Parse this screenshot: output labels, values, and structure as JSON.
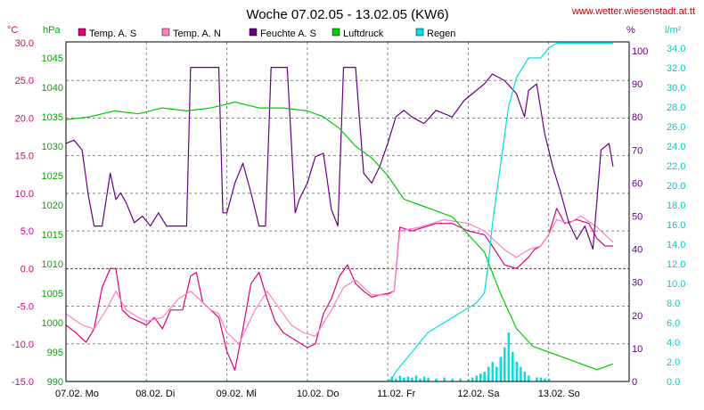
{
  "chart_data": {
    "type": "line",
    "title": "Woche 07.02.05 - 13.02.05 (KW6)",
    "source_label": "www.wetter.wiesenstadt.at.tt",
    "units": {
      "temp": "°C",
      "pressure": "hPa",
      "humidity": "%",
      "rain": "l/m²"
    },
    "x_ticks": [
      "07.02. Mo",
      "08.02. Di",
      "09.02. Mi",
      "10.02. Do",
      "11.02. Fr",
      "12.02. Sa",
      "13.02. So"
    ],
    "axes": {
      "temp": {
        "min": -15,
        "max": 30,
        "ticks": [
          "30.0",
          "25.0",
          "20.0",
          "15.0",
          "10.0",
          "5.0",
          "0.0",
          "-5.0",
          "-10.0",
          "-15.0"
        ]
      },
      "pressure": {
        "min": 990,
        "max": 1046,
        "ticks": [
          "1045",
          "1040",
          "1035",
          "1030",
          "1025",
          "1020",
          "1015",
          "1010",
          "1005",
          "1000",
          "995",
          "990"
        ]
      },
      "humidity": {
        "min": 0,
        "max": 100,
        "ticks": [
          "100",
          "90",
          "80",
          "70",
          "60",
          "50",
          "40",
          "30",
          "20",
          "10",
          "0"
        ]
      },
      "rain": {
        "min": 0,
        "max": 35,
        "ticks": [
          "34.0",
          "32.0",
          "30.0",
          "28.0",
          "26.0",
          "24.0",
          "22.0",
          "20.0",
          "18.0",
          "16.0",
          "14.0",
          "12.0",
          "10.0",
          "8.0",
          "6.0",
          "4.0",
          "2.0",
          "0.0"
        ]
      }
    },
    "grid": true,
    "legend_placement": "top",
    "x_unit": "days since 07.02. 00:00",
    "series": [
      {
        "name": "Temp. A. S",
        "axis": "temp",
        "color": "#e0007a",
        "kind": "line",
        "x": [
          0,
          0.12,
          0.25,
          0.35,
          0.45,
          0.55,
          0.62,
          0.7,
          0.8,
          0.9,
          1.0,
          1.1,
          1.2,
          1.3,
          1.45,
          1.55,
          1.62,
          1.7,
          1.8,
          1.9,
          2.0,
          2.1,
          2.2,
          2.3,
          2.4,
          2.5,
          2.6,
          2.7,
          2.85,
          3.0,
          3.1,
          3.2,
          3.3,
          3.4,
          3.5,
          3.6,
          3.7,
          3.8,
          3.9,
          4.0,
          4.08,
          4.15,
          4.3,
          4.45,
          4.6,
          4.8,
          5.0,
          5.2,
          5.3,
          5.45,
          5.6,
          5.75,
          5.82,
          5.9,
          6.0,
          6.1,
          6.2,
          6.35,
          6.5,
          6.6,
          6.7,
          6.8
        ],
        "y": [
          -7.5,
          -8.5,
          -9.8,
          -8.0,
          -2.5,
          0.0,
          0.0,
          -5.5,
          -6.5,
          -7.0,
          -7.5,
          -6.5,
          -8.0,
          -5.5,
          -5.5,
          -1.0,
          -0.5,
          -4.5,
          -5.5,
          -6.5,
          -11.0,
          -13.5,
          -8.0,
          -2.0,
          -0.5,
          -4.0,
          -7.0,
          -8.5,
          -9.5,
          -10.5,
          -10.0,
          -6.0,
          -4.0,
          -1.0,
          0.5,
          -2.0,
          -3.0,
          -3.8,
          -3.5,
          -3.3,
          -3.0,
          5.5,
          5.0,
          5.5,
          6.0,
          6.0,
          5.0,
          4.5,
          3.0,
          0.5,
          0.0,
          1.5,
          2.5,
          3.0,
          4.5,
          8.0,
          6.0,
          6.5,
          6.0,
          4.0,
          3.0,
          3.0
        ]
      },
      {
        "name": "Temp. A. N",
        "axis": "temp",
        "color": "#ff80c0",
        "kind": "line",
        "x": [
          0,
          0.2,
          0.35,
          0.5,
          0.62,
          0.75,
          0.9,
          1.0,
          1.2,
          1.4,
          1.55,
          1.65,
          1.8,
          1.9,
          2.0,
          2.15,
          2.35,
          2.5,
          2.6,
          2.8,
          2.95,
          3.1,
          3.3,
          3.45,
          3.6,
          3.8,
          4.0,
          4.08,
          4.15,
          4.4,
          4.7,
          5.0,
          5.2,
          5.45,
          5.6,
          5.75,
          5.9,
          6.0,
          6.1,
          6.25,
          6.4,
          6.6,
          6.8
        ],
        "y": [
          -6.0,
          -7.5,
          -8.0,
          -5.5,
          -3.0,
          -5.5,
          -6.5,
          -7.0,
          -6.5,
          -4.0,
          -3.0,
          -4.0,
          -5.5,
          -6.0,
          -8.5,
          -10.0,
          -5.5,
          -3.0,
          -4.5,
          -7.5,
          -8.5,
          -9.0,
          -5.5,
          -2.5,
          -1.5,
          -3.5,
          -3.5,
          -3.0,
          5.0,
          5.5,
          6.5,
          6.0,
          5.0,
          2.5,
          1.5,
          2.5,
          3.0,
          4.5,
          6.5,
          6.0,
          7.0,
          5.5,
          3.5
        ]
      },
      {
        "name": "Feuchte A. S",
        "axis": "humidity",
        "color": "#660080",
        "kind": "line",
        "x": [
          0,
          0.1,
          0.2,
          0.28,
          0.35,
          0.45,
          0.55,
          0.62,
          0.68,
          0.75,
          0.85,
          0.95,
          1.05,
          1.15,
          1.25,
          1.35,
          1.5,
          1.55,
          1.65,
          1.9,
          1.95,
          2.0,
          2.1,
          2.2,
          2.3,
          2.4,
          2.48,
          2.55,
          2.65,
          2.75,
          2.85,
          2.9,
          3.0,
          3.1,
          3.2,
          3.3,
          3.38,
          3.45,
          3.55,
          3.6,
          3.7,
          3.8,
          3.9,
          4.0,
          4.1,
          4.2,
          4.3,
          4.45,
          4.6,
          4.8,
          4.95,
          5.1,
          5.2,
          5.3,
          5.45,
          5.6,
          5.7,
          5.75,
          5.85,
          5.95,
          6.05,
          6.15,
          6.25,
          6.35,
          6.45,
          6.55,
          6.65,
          6.75,
          6.8
        ],
        "y": [
          72,
          73,
          70,
          56,
          47,
          47,
          63,
          55,
          57,
          54,
          48,
          50,
          47,
          51,
          47,
          47,
          47,
          95,
          95,
          95,
          51,
          51,
          60,
          66,
          57,
          47,
          47,
          95,
          95,
          95,
          51,
          55,
          60,
          68,
          69,
          52,
          47,
          95,
          95,
          95,
          63,
          60,
          65,
          72,
          80,
          82,
          80,
          78,
          82,
          80,
          85,
          88,
          90,
          93,
          91,
          87,
          80,
          88,
          90,
          75,
          65,
          57,
          48,
          43,
          47,
          40,
          70,
          72,
          65
        ]
      },
      {
        "name": "Luftdruck",
        "axis": "pressure",
        "color": "#00cc00",
        "kind": "line",
        "x": [
          0,
          0.3,
          0.6,
          0.9,
          1.2,
          1.5,
          1.8,
          2.1,
          2.4,
          2.7,
          3.0,
          3.2,
          3.4,
          3.6,
          3.8,
          4.0,
          4.2,
          4.4,
          4.6,
          4.8,
          5.0,
          5.2,
          5.4,
          5.6,
          5.8,
          6.0,
          6.2,
          6.4,
          6.6,
          6.8
        ],
        "y": [
          1034.5,
          1035,
          1036,
          1035.5,
          1036.5,
          1036,
          1036.5,
          1037.5,
          1036.5,
          1036.5,
          1036,
          1035,
          1033,
          1030,
          1028,
          1025,
          1021,
          1020,
          1019,
          1018,
          1015,
          1012,
          1005,
          999,
          996,
          995,
          994,
          993,
          992,
          993
        ]
      },
      {
        "name": "Regen",
        "axis": "rain",
        "color": "#00e0e0",
        "kind": "line",
        "x": [
          0,
          4.0,
          4.05,
          4.1,
          4.3,
          4.5,
          4.7,
          4.9,
          5.1,
          5.2,
          5.25,
          5.3,
          5.4,
          5.5,
          5.6,
          5.75,
          5.9,
          6.0,
          6.1,
          6.5,
          6.8
        ],
        "y": [
          0,
          0,
          0.3,
          1,
          3,
          5,
          6,
          7,
          8,
          9,
          12,
          16,
          22,
          28,
          31,
          33,
          33,
          34,
          34.5,
          34.5,
          34.5
        ]
      },
      {
        "name": "Regen (Balken)",
        "axis": "rain",
        "color": "#00e0e0",
        "kind": "bars",
        "x": [
          4.05,
          4.1,
          4.15,
          4.2,
          4.25,
          4.3,
          4.35,
          4.4,
          4.45,
          4.5,
          4.6,
          4.7,
          4.8,
          4.9,
          5.0,
          5.05,
          5.1,
          5.15,
          5.2,
          5.25,
          5.3,
          5.35,
          5.4,
          5.45,
          5.5,
          5.55,
          5.6,
          5.65,
          5.7,
          5.75,
          5.85,
          5.9,
          5.95,
          6.0
        ],
        "y": [
          0.5,
          0.3,
          0.6,
          0.4,
          0.5,
          0.4,
          0.6,
          0.3,
          0.5,
          0.4,
          0.3,
          0.4,
          0.3,
          0.3,
          0.2,
          0.4,
          0.6,
          0.8,
          1.0,
          1.5,
          2.0,
          1.5,
          2.5,
          3.5,
          5.0,
          3.0,
          2.0,
          1.5,
          1.0,
          0.6,
          0.4,
          0.4,
          0.3,
          0.3
        ]
      }
    ]
  }
}
